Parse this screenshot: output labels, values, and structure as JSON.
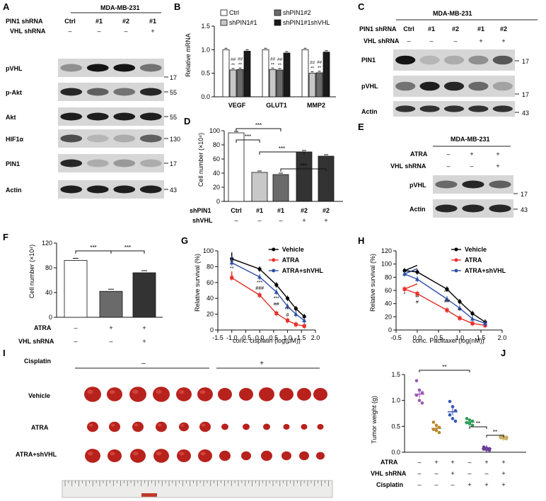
{
  "panels": {
    "A": {
      "letter": "A",
      "cell_line": "MDA-MB-231",
      "pin1_row_label": "PIN1 shRNA",
      "vhl_row_label": "VHL shRNA",
      "lanes": [
        "Ctrl",
        "#1",
        "#2",
        "#1"
      ],
      "vhl": [
        "–",
        "–",
        "–",
        "+"
      ],
      "blots": [
        "pVHL",
        "p-Akt",
        "Akt",
        "HIF1α",
        "PIN1",
        "Actin"
      ],
      "mw": [
        "17",
        "55",
        "55",
        "130",
        "17",
        "43"
      ]
    },
    "B": {
      "letter": "B",
      "ylabel": "Relative mRNA",
      "legend": [
        "Ctrl",
        "shPIN1#1",
        "shPIN1#2",
        "shPIN1#1shVHL"
      ],
      "yticks": [
        "0.0",
        "0.5",
        "1.0",
        "1.5"
      ],
      "stars": [
        "##",
        "**"
      ]
    },
    "C": {
      "letter": "C",
      "cell_line": "MDA-MB-231",
      "pin1_row_label": "PIN1 shRNA",
      "vhl_row_label": "VHL shRNA",
      "lanes": [
        "Ctrl",
        "#1",
        "#2",
        "#1",
        "#2"
      ],
      "vhl": [
        "–",
        "–",
        "–",
        "+",
        "+"
      ],
      "blots": [
        "PIN1",
        "pVHL",
        "Actin"
      ],
      "mw": [
        "17",
        "17",
        "43"
      ]
    },
    "D": {
      "letter": "D",
      "ylabel": "Cell number (×10⁴)",
      "yticks": [
        "0",
        "20",
        "40",
        "60",
        "80",
        "100"
      ],
      "row1_label": "shPIN1",
      "row2_label": "shVHL",
      "row1": [
        "Ctrl",
        "#1",
        "#1",
        "#2",
        "#2"
      ],
      "row2": [
        "–",
        "–",
        "–",
        "+",
        "+"
      ],
      "sig": "***"
    },
    "E": {
      "letter": "E",
      "cell_line": "MDA-MB-231",
      "atra_label": "ATRA",
      "vhl_label": "VHL shRNA",
      "atra": [
        "–",
        "+",
        "+"
      ],
      "vhl": [
        "–",
        "–",
        "+"
      ],
      "blots": [
        "pVHL",
        "Actin"
      ],
      "mw": [
        "17",
        "43"
      ]
    },
    "F": {
      "letter": "F",
      "ylabel": "Cell number (×10⁴)",
      "yticks": [
        "0",
        "40",
        "80",
        "120"
      ],
      "atra_label": "ATRA",
      "vhl_label": "VHL shRNA",
      "atra": [
        "–",
        "+",
        "+"
      ],
      "vhl": [
        "–",
        "–",
        "+"
      ],
      "sig": "***"
    },
    "G": {
      "letter": "G",
      "ylabel": "Relative survival (%)",
      "xlabel": "conc. cisplatin (log(μM))",
      "yticks": [
        "0",
        "20",
        "40",
        "60",
        "80",
        "100"
      ],
      "xticks": [
        "-1.5",
        "-1.0",
        "-0.5",
        "0.0",
        "0.5",
        "1.0",
        "1.5",
        "2.0"
      ],
      "legend": [
        "Vehicle",
        "ATRA",
        "ATRA+shVHL"
      ],
      "annotations": [
        "**",
        "***",
        "###",
        "##",
        "**",
        "#"
      ]
    },
    "H": {
      "letter": "H",
      "ylabel": "Relative survival (%)",
      "xlabel": "conc. Paclitaxel (log(nM))",
      "yticks": [
        "0",
        "20",
        "40",
        "60",
        "80",
        "100",
        "120"
      ],
      "xticks": [
        "-0.5",
        "0.0",
        "0.5",
        "1.0",
        "1.5",
        "2.0"
      ],
      "legend": [
        "Vehicle",
        "ATRA",
        "ATRA+shVHL"
      ],
      "annotations": [
        "*",
        "**",
        "#",
        "***",
        "##",
        "**"
      ]
    },
    "I": {
      "letter": "I",
      "cisplatin_label": "Cisplatin",
      "minus": "–",
      "plus": "+",
      "rows": [
        "Vehicle",
        "ATRA",
        "ATRA+shVHL"
      ]
    },
    "J": {
      "letter": "J",
      "ylabel": "Tumor weight (g)",
      "yticks": [
        "0.0",
        "0.5",
        "1.0",
        "1.5"
      ],
      "atra_label": "ATRA",
      "vhl_label": "VHL shRNA",
      "cis_label": "Cisplatin",
      "atra": [
        "–",
        "+",
        "+",
        "–",
        "+",
        "+"
      ],
      "vhl": [
        "–",
        "–",
        "+",
        "–",
        "–",
        "+"
      ],
      "cis": [
        "–",
        "–",
        "–",
        "+",
        "+",
        "+"
      ],
      "sig": "**"
    }
  },
  "colors": {
    "vehicle": "#000000",
    "atra": "#e8302a",
    "shvhl": "#2f4fa8",
    "tumor": "#b8221c"
  },
  "chart_data": [
    {
      "panel": "B",
      "type": "bar",
      "categories": [
        "VEGF",
        "GLUT1",
        "MMP2"
      ],
      "series": [
        {
          "name": "Ctrl",
          "values": [
            1.0,
            1.0,
            1.0
          ]
        },
        {
          "name": "shPIN1#1",
          "values": [
            0.57,
            0.58,
            0.5
          ]
        },
        {
          "name": "shPIN1#2",
          "values": [
            0.58,
            0.57,
            0.51
          ]
        },
        {
          "name": "shPIN1#1shVHL",
          "values": [
            0.97,
            0.93,
            0.95
          ]
        }
      ],
      "ylabel": "Relative mRNA",
      "ylim": [
        0,
        1.5
      ]
    },
    {
      "panel": "D",
      "type": "bar",
      "categories": [
        "1",
        "2",
        "3",
        "4",
        "5"
      ],
      "values": [
        97,
        41,
        38,
        70,
        64
      ],
      "ylabel": "Cell number (×10⁴)",
      "ylim": [
        0,
        100
      ]
    },
    {
      "panel": "F",
      "type": "bar",
      "categories": [
        "1",
        "2",
        "3"
      ],
      "values": [
        92,
        42,
        72
      ],
      "ylabel": "Cell number (×10⁴)",
      "ylim": [
        0,
        120
      ]
    },
    {
      "panel": "G",
      "type": "line",
      "xlabel": "conc. cisplatin (log(μM))",
      "ylabel": "Relative survival (%)",
      "xlim": [
        -1.5,
        2.0
      ],
      "ylim": [
        0,
        100
      ],
      "series": [
        {
          "name": "Vehicle",
          "x": [
            -1.0,
            0.0,
            0.6,
            1.0,
            1.3,
            1.6
          ],
          "y": [
            90,
            77,
            57,
            40,
            27,
            17
          ]
        },
        {
          "name": "ATRA",
          "x": [
            -1.0,
            0.0,
            0.6,
            1.0,
            1.3,
            1.6
          ],
          "y": [
            66,
            44,
            21,
            12,
            7,
            5
          ]
        },
        {
          "name": "ATRA+shVHL",
          "x": [
            -1.0,
            0.0,
            0.6,
            1.0,
            1.3,
            1.6
          ],
          "y": [
            85,
            67,
            48,
            30,
            20,
            12
          ]
        }
      ]
    },
    {
      "panel": "H",
      "type": "line",
      "xlabel": "conc. Paclitaxel (log(nM))",
      "ylabel": "Relative survival (%)",
      "xlim": [
        -0.5,
        2.0
      ],
      "ylim": [
        0,
        120
      ],
      "series": [
        {
          "name": "Vehicle",
          "x": [
            -0.3,
            0.0,
            0.7,
            1.0,
            1.3,
            1.6
          ],
          "y": [
            90,
            88,
            62,
            43,
            25,
            12
          ]
        },
        {
          "name": "ATRA",
          "x": [
            -0.3,
            0.0,
            0.7,
            1.0,
            1.3,
            1.6
          ],
          "y": [
            62,
            55,
            30,
            18,
            10,
            7
          ]
        },
        {
          "name": "ATRA+shVHL",
          "x": [
            -0.3,
            0.0,
            0.7,
            1.0,
            1.3,
            1.6
          ],
          "y": [
            85,
            77,
            47,
            33,
            17,
            10
          ]
        }
      ]
    },
    {
      "panel": "J",
      "type": "scatter",
      "ylabel": "Tumor weight (g)",
      "ylim": [
        0,
        1.5
      ],
      "groups": [
        {
          "values": [
            1.38,
            1.2,
            1.15,
            1.1,
            1.0,
            0.95
          ],
          "mean": 1.12,
          "color": "#9b59b6"
        },
        {
          "values": [
            0.58,
            0.52,
            0.48,
            0.44,
            0.42,
            0.38
          ],
          "mean": 0.46,
          "color": "#b8862b"
        },
        {
          "values": [
            0.98,
            0.88,
            0.8,
            0.72,
            0.65,
            0.6
          ],
          "mean": 0.78,
          "color": "#3556b8"
        },
        {
          "values": [
            0.65,
            0.62,
            0.6,
            0.57,
            0.55,
            0.52
          ],
          "mean": 0.58,
          "color": "#2e9e58"
        },
        {
          "values": [
            0.1,
            0.08,
            0.07,
            0.06,
            0.05,
            0.04
          ],
          "mean": 0.07,
          "color": "#6a3d9a"
        },
        {
          "values": [
            0.31,
            0.3,
            0.29,
            0.28,
            0.27,
            0.26
          ],
          "mean": 0.29,
          "color": "#c9b062"
        }
      ]
    }
  ]
}
